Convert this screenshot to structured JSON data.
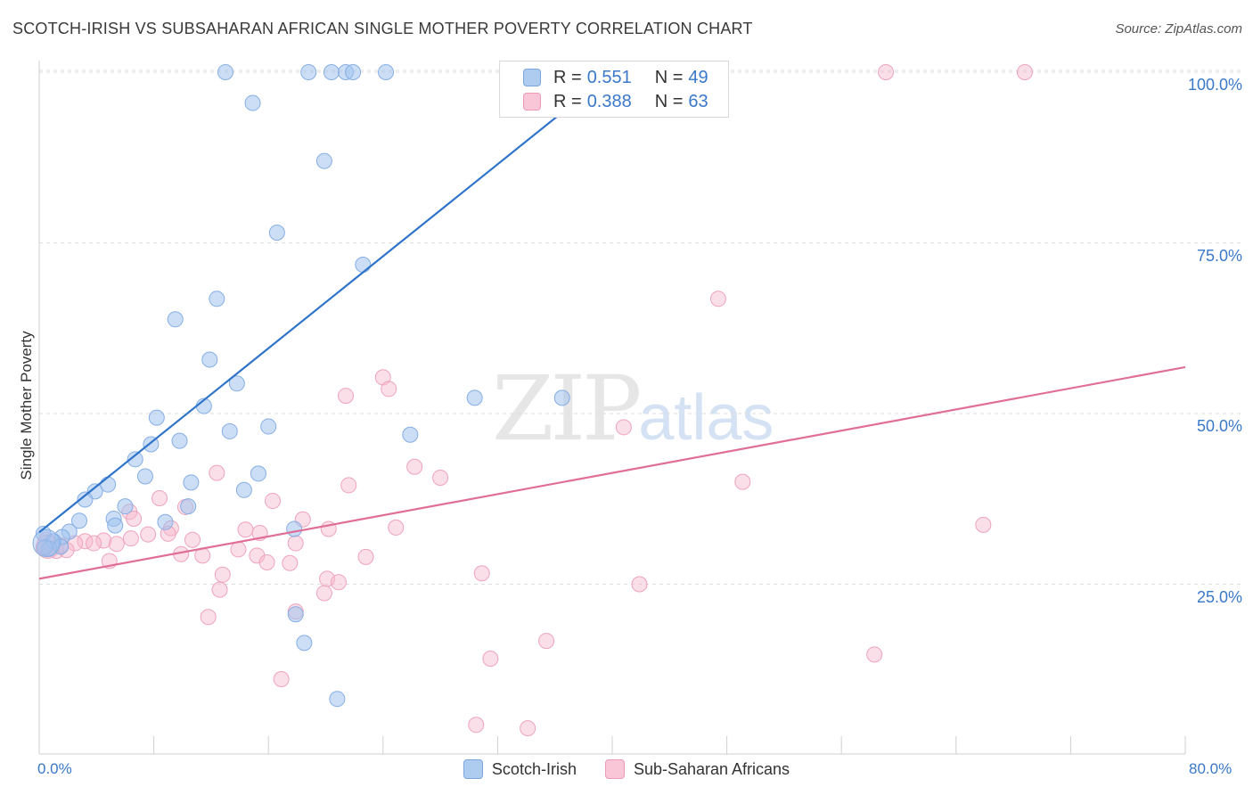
{
  "title": "SCOTCH-IRISH VS SUBSAHARAN AFRICAN SINGLE MOTHER POVERTY CORRELATION CHART",
  "source": "Source: ZipAtlas.com",
  "watermark": {
    "zip": "ZIP",
    "atlas": "atlas"
  },
  "legend_top": {
    "row1": {
      "r_label": "R = ",
      "r_value": "0.551",
      "n_label": "N = ",
      "n_value": "49"
    },
    "row2": {
      "r_label": "R = ",
      "r_value": "0.388",
      "n_label": "N = ",
      "n_value": "63"
    }
  },
  "chart_data": {
    "type": "scatter",
    "title": "SCOTCH-IRISH VS SUBSAHARAN AFRICAN SINGLE MOTHER POVERTY CORRELATION CHART",
    "xlabel": "",
    "ylabel": "Single Mother Poverty",
    "xlim": [
      0,
      80
    ],
    "ylim": [
      0,
      105
    ],
    "x_tick_labels": [
      "0.0%",
      "80.0%"
    ],
    "y_tick_values": [
      25,
      50,
      75,
      100
    ],
    "y_tick_labels": [
      "25.0%",
      "50.0%",
      "75.0%",
      "100.0%"
    ],
    "grid": "horizontal-dashed",
    "legend_position": "bottom-center",
    "series": [
      {
        "name": "Scotch-Irish",
        "color": "#8fb6e8",
        "line_color": "#2f74c9",
        "trend": {
          "x": [
            0,
            40
          ],
          "y": [
            32.6,
            100
          ]
        },
        "points": [
          [
            13,
            100
          ],
          [
            18.8,
            100
          ],
          [
            20.4,
            100
          ],
          [
            21.4,
            100
          ],
          [
            21.9,
            100
          ],
          [
            24.2,
            100
          ],
          [
            38.5,
            100
          ],
          [
            14.9,
            95.5
          ],
          [
            19.9,
            87
          ],
          [
            16.6,
            76.5
          ],
          [
            22.6,
            71.8
          ],
          [
            12.4,
            66.8
          ],
          [
            9.5,
            63.8
          ],
          [
            11.9,
            57.9
          ],
          [
            13.8,
            54.4
          ],
          [
            30.4,
            52.3
          ],
          [
            36.5,
            52.3
          ],
          [
            11.5,
            51.1
          ],
          [
            8.2,
            49.4
          ],
          [
            13.3,
            47.4
          ],
          [
            16,
            48.1
          ],
          [
            25.9,
            46.9
          ],
          [
            9.8,
            46
          ],
          [
            7.8,
            45.5
          ],
          [
            6.7,
            43.3
          ],
          [
            7.4,
            40.8
          ],
          [
            15.3,
            41.2
          ],
          [
            10.6,
            39.9
          ],
          [
            14.3,
            38.8
          ],
          [
            4.8,
            39.6
          ],
          [
            3.9,
            38.6
          ],
          [
            3.2,
            37.4
          ],
          [
            6,
            36.4
          ],
          [
            10.4,
            36.4
          ],
          [
            5.2,
            34.6
          ],
          [
            8.8,
            34.1
          ],
          [
            5.3,
            33.6
          ],
          [
            2.8,
            34.3
          ],
          [
            17.8,
            33.1
          ],
          [
            2.1,
            32.7
          ],
          [
            1.6,
            31.9
          ],
          [
            0.3,
            32.4
          ],
          [
            1,
            31.3
          ],
          [
            1.5,
            30.5
          ],
          [
            0.7,
            30.2
          ],
          [
            0.4,
            30.4
          ],
          [
            17.9,
            20.6
          ],
          [
            18.5,
            16.4
          ],
          [
            20.8,
            8.2
          ]
        ]
      },
      {
        "name": "Sub-Saharan Africans",
        "color": "#f4b0c6",
        "line_color": "#e06e96",
        "trend": {
          "x": [
            0,
            80
          ],
          "y": [
            25.8,
            56.8
          ]
        },
        "points": [
          [
            59.1,
            100
          ],
          [
            68.8,
            100
          ],
          [
            47.4,
            66.8
          ],
          [
            24,
            55.3
          ],
          [
            24.4,
            53.6
          ],
          [
            21.4,
            52.6
          ],
          [
            40.8,
            48
          ],
          [
            26.2,
            42.2
          ],
          [
            28,
            40.6
          ],
          [
            49.1,
            40
          ],
          [
            12.4,
            41.3
          ],
          [
            21.6,
            39.5
          ],
          [
            8.4,
            37.6
          ],
          [
            16.3,
            37.2
          ],
          [
            6.3,
            35.6
          ],
          [
            10.2,
            36.3
          ],
          [
            18.4,
            34.5
          ],
          [
            65.9,
            33.7
          ],
          [
            6.6,
            34.6
          ],
          [
            24.9,
            33.3
          ],
          [
            20.2,
            33.1
          ],
          [
            14.4,
            33
          ],
          [
            9.2,
            33.2
          ],
          [
            7.6,
            32.3
          ],
          [
            15.4,
            32.5
          ],
          [
            9,
            32.4
          ],
          [
            6.4,
            31.7
          ],
          [
            3.2,
            31.3
          ],
          [
            4.5,
            31.4
          ],
          [
            2.5,
            31
          ],
          [
            0.5,
            31.5
          ],
          [
            1.5,
            30.7
          ],
          [
            10.7,
            31.5
          ],
          [
            5.4,
            30.9
          ],
          [
            3.8,
            31
          ],
          [
            17.9,
            31
          ],
          [
            0.3,
            30.3
          ],
          [
            0.6,
            30.1
          ],
          [
            1.2,
            29.9
          ],
          [
            1.9,
            30
          ],
          [
            13.9,
            30.1
          ],
          [
            9.9,
            29.4
          ],
          [
            11.4,
            29.2
          ],
          [
            15.2,
            29.2
          ],
          [
            22.8,
            29
          ],
          [
            4.9,
            28.4
          ],
          [
            17.5,
            28.1
          ],
          [
            15.9,
            28.2
          ],
          [
            12.8,
            26.4
          ],
          [
            30.9,
            26.6
          ],
          [
            20.1,
            25.8
          ],
          [
            20.9,
            25.3
          ],
          [
            41.9,
            25
          ],
          [
            12.6,
            24.2
          ],
          [
            19.9,
            23.7
          ],
          [
            11.8,
            20.2
          ],
          [
            17.9,
            21
          ],
          [
            35.4,
            16.7
          ],
          [
            58.3,
            14.7
          ],
          [
            31.5,
            14.1
          ],
          [
            16.9,
            11.1
          ],
          [
            30.5,
            4.4
          ],
          [
            34.1,
            3.9
          ]
        ]
      }
    ]
  },
  "colors": {
    "axis_tick_text": "#3a78c9",
    "grid": "#dedede",
    "blue_fill": "#aecbf0",
    "pink_fill": "#f8c6d6"
  }
}
